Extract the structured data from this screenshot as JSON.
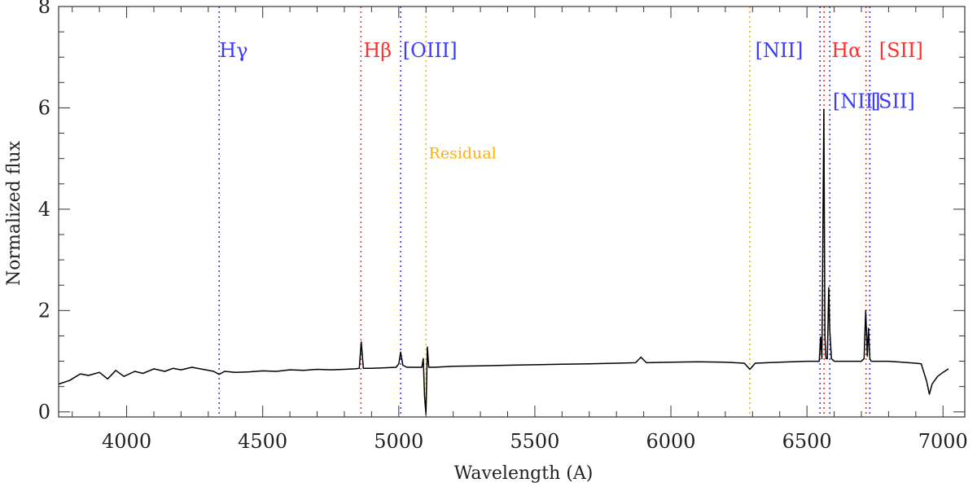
{
  "chart_data": {
    "type": "line",
    "title": "",
    "xlabel": "Wavelength (A)",
    "ylabel": "Normalized flux",
    "xlim": [
      3750,
      7080
    ],
    "ylim": [
      -0.1,
      8.0
    ],
    "x_ticks": [
      4000,
      4500,
      5000,
      5500,
      6000,
      6500,
      7000
    ],
    "y_ticks": [
      0,
      2,
      4,
      6,
      8
    ],
    "grid": false,
    "colors": {
      "blue": "#3b3bff",
      "red": "#ff3030",
      "orange": "#ffb000",
      "spectrum": "#000000"
    },
    "series": [
      {
        "x": [
          3750,
          3790,
          3830,
          3860,
          3900,
          3930,
          3960,
          3990,
          4030,
          4060,
          4100,
          4140,
          4170,
          4200,
          4240,
          4280,
          4320,
          4340,
          4360,
          4400,
          4450,
          4500,
          4550,
          4600,
          4650,
          4700,
          4750,
          4800,
          4840,
          4855,
          4862,
          4870,
          4885,
          4900,
          4950,
          4990,
          5000,
          5007,
          5015,
          5030,
          5060,
          5085,
          5090,
          5095,
          5100,
          5105,
          5110,
          5115,
          5130,
          5200,
          5300,
          5400,
          5500,
          5600,
          5700,
          5800,
          5870,
          5890,
          5910,
          6000,
          6100,
          6200,
          6270,
          6290,
          6310,
          6400,
          6500,
          6530,
          6545,
          6550,
          6555,
          6562,
          6566,
          6570,
          6575,
          6580,
          6584,
          6590,
          6600,
          6650,
          6700,
          6710,
          6716,
          6722,
          6726,
          6731,
          6736,
          6750,
          6800,
          6850,
          6900,
          6920,
          6940,
          6950,
          6960,
          6980,
          7000,
          7020
        ],
        "y": [
          0.55,
          0.62,
          0.75,
          0.72,
          0.78,
          0.65,
          0.82,
          0.7,
          0.8,
          0.76,
          0.85,
          0.8,
          0.86,
          0.83,
          0.88,
          0.84,
          0.8,
          0.74,
          0.8,
          0.78,
          0.79,
          0.81,
          0.8,
          0.83,
          0.82,
          0.84,
          0.83,
          0.84,
          0.85,
          0.86,
          1.38,
          0.86,
          0.86,
          0.86,
          0.87,
          0.88,
          0.95,
          1.18,
          0.92,
          0.88,
          0.88,
          0.88,
          1.05,
          0.3,
          -0.05,
          1.28,
          0.88,
          0.88,
          0.88,
          0.9,
          0.91,
          0.92,
          0.93,
          0.94,
          0.95,
          0.96,
          0.97,
          1.08,
          0.97,
          0.98,
          0.99,
          0.98,
          0.96,
          0.84,
          0.96,
          0.98,
          1.0,
          1.0,
          1.0,
          1.48,
          1.05,
          5.97,
          1.5,
          1.05,
          1.05,
          2.45,
          1.6,
          1.05,
          1.0,
          1.0,
          1.0,
          1.05,
          2.0,
          1.1,
          1.65,
          1.05,
          1.0,
          1.0,
          1.0,
          0.98,
          0.96,
          0.95,
          0.6,
          0.35,
          0.55,
          0.7,
          0.78,
          0.85
        ]
      }
    ],
    "vlines": [
      {
        "x": 4340,
        "color": "blue"
      },
      {
        "x": 4861,
        "color": "red"
      },
      {
        "x": 5007,
        "color": "blue"
      },
      {
        "x": 5100,
        "color": "orange"
      },
      {
        "x": 6290,
        "color": "orange"
      },
      {
        "x": 6548,
        "color": "blue"
      },
      {
        "x": 6563,
        "color": "red"
      },
      {
        "x": 6584,
        "color": "blue"
      },
      {
        "x": 6717,
        "color": "red"
      },
      {
        "x": 6731,
        "color": "blue"
      }
    ],
    "annotations": [
      {
        "text": "Hγ",
        "x": 4340,
        "y": 7.0,
        "color": "blue",
        "style": "line"
      },
      {
        "text": "Hβ",
        "x": 4870,
        "y": 7.0,
        "color": "red",
        "style": "line"
      },
      {
        "text": "[OIII]",
        "x": 5015,
        "y": 7.0,
        "color": "blue",
        "style": "line"
      },
      {
        "text": "Residual",
        "x": 5110,
        "y": 5.0,
        "color": "orange",
        "style": "residual"
      },
      {
        "text": "[NII]",
        "x": 6310,
        "y": 7.0,
        "color": "blue",
        "style": "line"
      },
      {
        "text": "Hα",
        "x": 6590,
        "y": 7.0,
        "color": "red",
        "style": "line"
      },
      {
        "text": "[SII]",
        "x": 6765,
        "y": 7.0,
        "color": "red",
        "style": "line"
      },
      {
        "text": "[NII]",
        "x": 6595,
        "y": 6.0,
        "color": "blue",
        "style": "line"
      },
      {
        "text": "[SII]",
        "x": 6735,
        "y": 6.0,
        "color": "blue",
        "style": "line"
      }
    ]
  }
}
